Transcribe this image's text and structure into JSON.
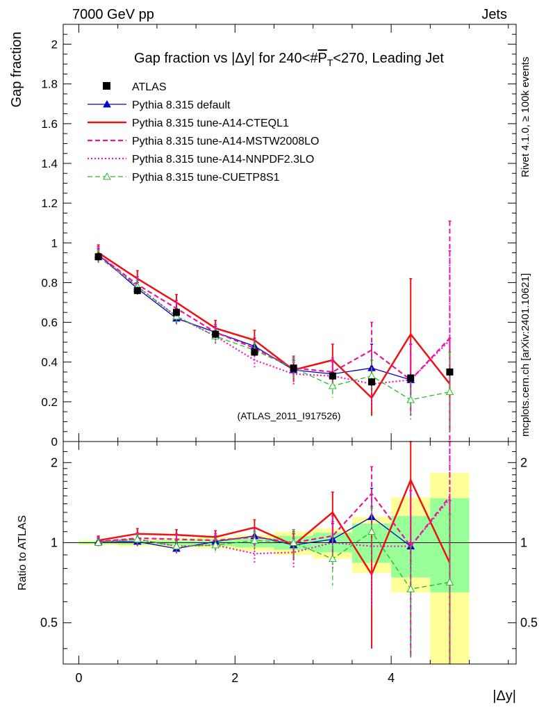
{
  "header": {
    "left": "7000 GeV pp",
    "right": "Jets"
  },
  "side_labels": {
    "rivet": "Rivet 4.1.0, ≥ 100k events",
    "mcplots": "mcplots.cern.ch [arXiv:2401.10621]"
  },
  "watermark": "(ATLAS_2011_I917526)",
  "colors": {
    "atlas": "#000000",
    "default": "#0000cc",
    "cteql1": "#ee1111",
    "mstw": "#ee1199",
    "nnpdf": "#ee11cc",
    "cuetp": "#22bb22",
    "band_yellow": "#ffff99",
    "band_green": "#99ff99"
  },
  "chart_data": [
    {
      "type": "line",
      "panel": "main",
      "title": "Gap fraction vs |Δy| for 240<#P̅T<270, Leading Jet",
      "title_parts": [
        "Gap fraction vs |Δy| for 240<#",
        "P",
        "T",
        "<270, Leading Jet"
      ],
      "ylabel": "Gap fraction",
      "xlim": [
        -0.2,
        5.6
      ],
      "ylim": [
        0,
        2.1
      ],
      "yticks": [
        0,
        0.2,
        0.4,
        0.6,
        0.8,
        1,
        1.2,
        1.4,
        1.6,
        1.8,
        2
      ],
      "ytick_labels": [
        "0",
        "0.2",
        "0.4",
        "0.6",
        "0.8",
        "1",
        "1.2",
        "1.4",
        "1.6",
        "1.8",
        "2"
      ],
      "x": [
        0.25,
        0.75,
        1.25,
        1.75,
        2.25,
        2.75,
        3.25,
        3.75,
        4.25,
        4.75
      ],
      "series": [
        {
          "key": "atlas",
          "name": "ATLAS",
          "style": "data",
          "values": [
            0.93,
            0.76,
            0.65,
            0.54,
            0.45,
            0.37,
            0.33,
            0.3,
            0.32,
            0.35
          ],
          "errors": [
            0.02,
            0.02,
            0.02,
            0.02,
            0.02,
            0.02,
            0.02,
            0.02,
            0.02,
            0.02
          ]
        },
        {
          "key": "default",
          "name": "Pythia 8.315 default",
          "style": "solid",
          "marker": "triangle",
          "values": [
            0.94,
            0.77,
            0.62,
            0.55,
            0.48,
            0.36,
            0.34,
            0.37,
            0.31,
            null
          ],
          "errors": [
            0.03,
            0.03,
            0.03,
            0.03,
            0.04,
            0.05,
            0.07,
            0.12,
            0.18,
            null
          ]
        },
        {
          "key": "cteql1",
          "name": "Pythia 8.315 tune-A14-CTEQL1",
          "style": "solid",
          "values": [
            0.95,
            0.82,
            0.7,
            0.57,
            0.51,
            0.36,
            0.41,
            0.22,
            0.54,
            0.29
          ],
          "errors": [
            0.04,
            0.04,
            0.04,
            0.04,
            0.05,
            0.06,
            0.08,
            0.09,
            0.28,
            0.23
          ]
        },
        {
          "key": "mstw",
          "name": "Pythia 8.315 tune-A14-MSTW2008LO",
          "style": "dashed",
          "values": [
            0.94,
            0.79,
            0.67,
            0.55,
            0.47,
            0.37,
            0.35,
            0.46,
            0.31,
            0.52
          ],
          "errors": [
            0.04,
            0.04,
            0.04,
            0.04,
            0.04,
            0.06,
            0.07,
            0.14,
            0.18,
            0.59
          ]
        },
        {
          "key": "nnpdf",
          "name": "Pythia 8.315 tune-A14-NNPDF2.3LO",
          "style": "dotted",
          "values": [
            0.94,
            0.78,
            0.63,
            0.53,
            0.41,
            0.34,
            0.33,
            0.29,
            0.31,
            0.51
          ],
          "errors": [
            0.04,
            0.04,
            0.04,
            0.04,
            0.04,
            0.06,
            0.07,
            0.12,
            0.18,
            0.45
          ]
        },
        {
          "key": "cuetp",
          "name": "Pythia 8.315 tune-CUETP8S1",
          "style": "dashed",
          "marker": "open-triangle",
          "values": [
            0.93,
            0.78,
            0.63,
            0.53,
            0.46,
            0.37,
            0.28,
            0.33,
            0.21,
            0.25
          ],
          "errors": [
            0.03,
            0.03,
            0.03,
            0.03,
            0.04,
            0.05,
            0.06,
            0.08,
            0.1,
            0.2
          ]
        }
      ]
    },
    {
      "type": "line",
      "panel": "ratio",
      "ylabel": "Ratio to ATLAS",
      "xlabel": "|Δy|",
      "xlim": [
        -0.2,
        5.6
      ],
      "ylim": [
        0.35,
        2.4
      ],
      "yscale": "log",
      "xticks": [
        0,
        2,
        4
      ],
      "xtick_labels": [
        "0",
        "2",
        "4"
      ],
      "yticks": [
        0.5,
        1,
        2
      ],
      "ytick_labels": [
        "0.5",
        "1",
        "2"
      ],
      "x": [
        0.25,
        0.75,
        1.25,
        1.75,
        2.25,
        2.75,
        3.25,
        3.75,
        4.25,
        4.75
      ],
      "bin_edges": [
        0,
        0.5,
        1,
        1.5,
        2,
        2.5,
        3,
        3.5,
        4,
        4.5,
        5
      ],
      "band_yellow": [
        [
          0.98,
          1.02
        ],
        [
          0.97,
          1.03
        ],
        [
          0.96,
          1.04
        ],
        [
          0.95,
          1.05
        ],
        [
          0.93,
          1.07
        ],
        [
          0.9,
          1.1
        ],
        [
          0.87,
          1.13
        ],
        [
          0.77,
          1.25
        ],
        [
          0.65,
          1.48
        ],
        [
          0.35,
          1.83
        ]
      ],
      "band_green": [
        [
          0.99,
          1.01
        ],
        [
          0.985,
          1.015
        ],
        [
          0.98,
          1.02
        ],
        [
          0.97,
          1.03
        ],
        [
          0.96,
          1.04
        ],
        [
          0.94,
          1.06
        ],
        [
          0.92,
          1.09
        ],
        [
          0.84,
          1.18
        ],
        [
          0.74,
          1.26
        ],
        [
          0.65,
          1.47
        ]
      ],
      "series": [
        {
          "key": "default",
          "name": "Pythia 8.315 default",
          "style": "solid",
          "marker": "triangle",
          "values": [
            1.01,
            1.01,
            0.95,
            1.01,
            1.06,
            0.98,
            1.03,
            1.25,
            0.97,
            null
          ],
          "errors": [
            0.03,
            0.04,
            0.04,
            0.05,
            0.07,
            0.1,
            0.15,
            0.35,
            0.6,
            null
          ]
        },
        {
          "key": "cteql1",
          "name": "Pythia 8.315 tune-A14-CTEQL1",
          "style": "solid",
          "values": [
            1.02,
            1.08,
            1.07,
            1.05,
            1.14,
            0.98,
            1.3,
            0.76,
            1.72,
            0.84
          ],
          "errors": [
            0.04,
            0.05,
            0.05,
            0.06,
            0.08,
            0.12,
            0.25,
            0.36,
            0.9,
            0.6
          ]
        },
        {
          "key": "mstw",
          "name": "Pythia 8.315 tune-A14-MSTW2008LO",
          "style": "dashed",
          "values": [
            1.01,
            1.04,
            1.03,
            1.02,
            1.05,
            1.0,
            1.06,
            1.53,
            0.97,
            1.49
          ],
          "errors": [
            0.04,
            0.05,
            0.05,
            0.06,
            0.08,
            0.12,
            0.2,
            0.4,
            0.6,
            1.7
          ]
        },
        {
          "key": "nnpdf",
          "name": "Pythia 8.315 tune-A14-NNPDF2.3LO",
          "style": "dotted",
          "values": [
            1.01,
            1.03,
            0.97,
            0.98,
            0.91,
            0.92,
            1.0,
            0.97,
            0.97,
            1.46
          ],
          "errors": [
            0.04,
            0.05,
            0.05,
            0.06,
            0.08,
            0.12,
            0.2,
            0.4,
            0.6,
            1.3
          ]
        },
        {
          "key": "cuetp",
          "name": "Pythia 8.315 tune-CUETP8S1",
          "style": "dashed",
          "marker": "open-triangle",
          "values": [
            1.0,
            1.03,
            0.97,
            0.98,
            1.02,
            1.0,
            0.87,
            1.1,
            0.67,
            0.71
          ],
          "errors": [
            0.03,
            0.04,
            0.04,
            0.05,
            0.08,
            0.12,
            0.18,
            0.25,
            0.3,
            0.57
          ]
        }
      ]
    }
  ]
}
